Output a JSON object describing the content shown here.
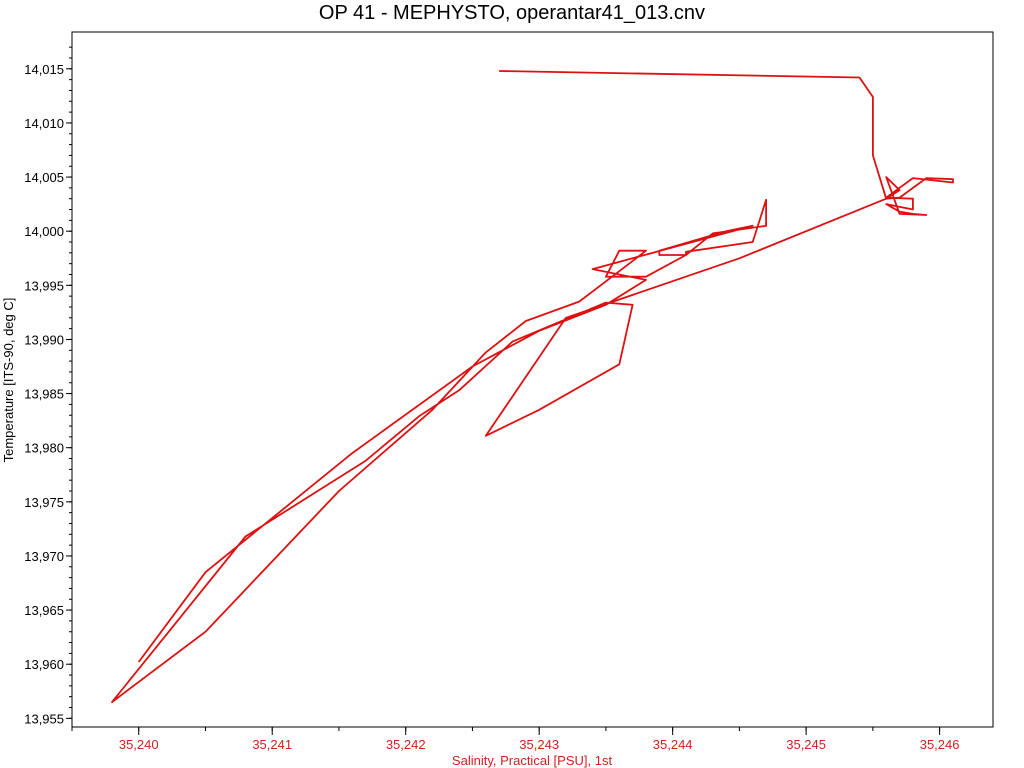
{
  "chart_data": {
    "type": "line",
    "title": "OP 41 - MEPHYSTO, operantar41_013.cnv",
    "xlabel": "Salinity, Practical [PSU], 1st",
    "ylabel": "Temperature [ITS-90, deg C]",
    "xlim": [
      35.2395,
      35.2464
    ],
    "ylim": [
      13.9542,
      14.0184
    ],
    "x_ticks": [
      35.24,
      35.241,
      35.242,
      35.243,
      35.244,
      35.245,
      35.246
    ],
    "x_tick_labels": [
      "35,240",
      "35,241",
      "35,242",
      "35,243",
      "35,244",
      "35,245",
      "35,246"
    ],
    "y_ticks": [
      13.955,
      13.96,
      13.965,
      13.97,
      13.975,
      13.98,
      13.985,
      13.99,
      13.995,
      14.0,
      14.005,
      14.01,
      14.015
    ],
    "y_tick_labels": [
      "13,955",
      "13,960",
      "13,965",
      "13,970",
      "13,975",
      "13,980",
      "13,985",
      "13,990",
      "13,995",
      "14,000",
      "14,005",
      "14,010",
      "14,015"
    ],
    "grid": false,
    "colors": {
      "series": "#dd1111",
      "x_axis_text": "#cc2222",
      "y_axis_text": "#000000"
    },
    "series": [
      {
        "x": [
          35.2427,
          35.2454,
          35.2455,
          35.2455,
          35.2456,
          35.2457,
          35.2459,
          35.2461,
          35.2461,
          35.2458,
          35.2456,
          35.2458,
          35.2458,
          35.2456,
          35.2457,
          35.2458,
          35.2459,
          35.2457,
          35.2456,
          35.2457,
          35.2456,
          35.2445,
          35.2432,
          35.2426,
          35.243,
          35.2436,
          35.2437,
          35.2435,
          35.2428,
          35.2424,
          35.2421,
          35.2417,
          35.2408,
          35.2398,
          35.2405,
          35.2415,
          35.2422,
          35.2426,
          35.2429,
          35.2433,
          35.2436,
          35.2438,
          35.2436,
          35.2435,
          35.2438,
          35.2441,
          35.2443,
          35.2447,
          35.2447,
          35.2446,
          35.2441,
          35.2441,
          35.2439,
          35.2439,
          35.2444,
          35.2446,
          35.244,
          35.2434,
          35.2438,
          35.2435,
          35.243,
          35.2425,
          35.2416,
          35.2405,
          35.24
        ],
        "y": [
          14.0148,
          14.0142,
          14.0124,
          14.007,
          14.003,
          14.0031,
          14.0049,
          14.0048,
          14.0045,
          14.0049,
          14.0031,
          14.003,
          14.002,
          14.0025,
          14.0018,
          14.0016,
          14.0015,
          14.0016,
          14.005,
          14.0038,
          14.003,
          13.9975,
          13.992,
          13.9811,
          13.9835,
          13.9877,
          13.9932,
          13.9934,
          13.9898,
          13.9853,
          13.9829,
          13.9788,
          13.9718,
          13.9565,
          13.963,
          13.976,
          13.9835,
          13.9888,
          13.9917,
          13.9935,
          13.9963,
          13.9982,
          13.9982,
          13.9958,
          13.9958,
          13.9978,
          13.9998,
          14.0005,
          14.0029,
          13.999,
          13.9981,
          13.9978,
          13.9978,
          13.9982,
          14.0,
          14.0005,
          13.9985,
          13.9965,
          13.9955,
          13.9932,
          13.9908,
          13.9875,
          13.9795,
          13.9685,
          13.9602
        ]
      }
    ]
  }
}
